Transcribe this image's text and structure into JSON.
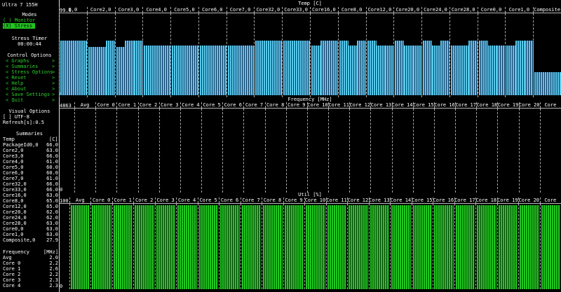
{
  "app": {
    "title": "Ultra 7 155H"
  },
  "sidebar": {
    "modes_title": "Modes",
    "mode_monitor": "( ) Monitor",
    "mode_stress": "(X) Stress",
    "stress_timer_title": "Stress Timer",
    "stress_timer_value": "00:00:44",
    "control_title": "Control Options",
    "controls": [
      {
        "label": "< Graphs",
        "arrow": ">"
      },
      {
        "label": "< Summaries",
        "arrow": ">"
      },
      {
        "label": "< Stress Options",
        "arrow": ">"
      },
      {
        "label": "< Reset",
        "arrow": ">"
      },
      {
        "label": "< Help",
        "arrow": ">"
      },
      {
        "label": "< About",
        "arrow": ">"
      },
      {
        "label": "< Save Settings",
        "arrow": ">"
      },
      {
        "label": "< Quit",
        "arrow": ">"
      }
    ],
    "visual_title": "Visual Options",
    "utf8": "[ ] UTF-8",
    "refresh": "Refresh[s]:0.5",
    "summaries_title": "Summaries",
    "temp_header": {
      "label": "Temp",
      "unit": "[C]"
    },
    "temp_rows": [
      {
        "label": "PackageId0,0",
        "value": "66.0"
      },
      {
        "label": "Core2,0",
        "value": "63.0"
      },
      {
        "label": "Core3,0",
        "value": "66.0"
      },
      {
        "label": "Core4,0",
        "value": "61.0"
      },
      {
        "label": "Core5,0",
        "value": "60.0"
      },
      {
        "label": "Core6,0",
        "value": "60.0"
      },
      {
        "label": "Core7,0",
        "value": "61.0"
      },
      {
        "label": "Core32,0",
        "value": "66.0"
      },
      {
        "label": "Core33,0",
        "value": "66.0"
      },
      {
        "label": "Core16,0",
        "value": "63.0"
      },
      {
        "label": "Core8,0",
        "value": "65.0"
      },
      {
        "label": "Core12,0",
        "value": "65.0"
      },
      {
        "label": "Core20,0",
        "value": "62.0"
      },
      {
        "label": "Core24,0",
        "value": "62.0"
      },
      {
        "label": "Core28,0",
        "value": "63.0"
      },
      {
        "label": "Core0,0",
        "value": "63.0"
      },
      {
        "label": "Core1,0",
        "value": "63.0"
      },
      {
        "label": "Composite,0",
        "value": "27.9"
      }
    ],
    "freq_header": {
      "label": "Frequency",
      "unit": "[MHz]"
    },
    "freq_rows": [
      {
        "label": "Avg",
        "value": "2.0"
      },
      {
        "label": "Core 0",
        "value": "2.2"
      },
      {
        "label": "Core 1",
        "value": "2.6"
      },
      {
        "label": "Core 2",
        "value": "2.2"
      },
      {
        "label": "Core 3",
        "value": "2.3"
      },
      {
        "label": "Core 4",
        "value": "2.3"
      }
    ]
  },
  "temp_graph": {
    "title": "Temp [C]",
    "scale_top": "99.0",
    "scale_bottom": "0.0",
    "columns": [
      {
        "label": "0,0",
        "levels": [
          0.67
        ]
      },
      {
        "label": "Core2,0",
        "levels": [
          0.59,
          0.59,
          0.67
        ]
      },
      {
        "label": "Core3,0",
        "levels": [
          0.59,
          0.67,
          0.67
        ]
      },
      {
        "label": "Core4,0",
        "levels": [
          0.61
        ]
      },
      {
        "label": "Core5,0",
        "levels": [
          0.61
        ]
      },
      {
        "label": "Core6,0",
        "levels": [
          0.61
        ]
      },
      {
        "label": "Core7,0",
        "levels": [
          0.61
        ]
      },
      {
        "label": "Core32,0",
        "levels": [
          0.67
        ]
      },
      {
        "label": "Core33,0",
        "levels": [
          0.67
        ]
      },
      {
        "label": "Core16,0",
        "levels": [
          0.61,
          0.67,
          0.67
        ]
      },
      {
        "label": "Core8,0",
        "levels": [
          0.67,
          0.61,
          0.67
        ]
      },
      {
        "label": "Core12,0",
        "levels": [
          0.67,
          0.61,
          0.61
        ]
      },
      {
        "label": "Core20,0",
        "levels": [
          0.67,
          0.61,
          0.61
        ]
      },
      {
        "label": "Core24,0",
        "levels": [
          0.67,
          0.61,
          0.67
        ]
      },
      {
        "label": "Core28,0",
        "levels": [
          0.61,
          0.61,
          0.67
        ]
      },
      {
        "label": "Core0,0",
        "levels": [
          0.67,
          0.61,
          0.61
        ]
      },
      {
        "label": "Core1,0",
        "levels": [
          0.61,
          0.67,
          0.67
        ]
      },
      {
        "label": "Composite",
        "levels": [
          0.28
        ]
      }
    ]
  },
  "freq_graph": {
    "title": "Frequency [MHz]",
    "scale_top": "4863",
    "columns": [
      "Avg",
      "Core 0",
      "Core 1",
      "Core 2",
      "Core 3",
      "Core 4",
      "Core 5",
      "Core 6",
      "Core 7",
      "Core 8",
      "Core 9",
      "Core 10",
      "Core 11",
      "Core 12",
      "Core 13",
      "Core 14",
      "Core 15",
      "Core 16",
      "Core 17",
      "Core 18",
      "Core 19",
      "Core 20",
      "Core"
    ]
  },
  "util_graph": {
    "title": "Util [%]",
    "scale_top": "100",
    "columns": [
      "Avg",
      "Core 0",
      "Core 1",
      "Core 2",
      "Core 3",
      "Core 4",
      "Core 5",
      "Core 6",
      "Core 7",
      "Core 8",
      "Core 9",
      "Core 10",
      "Core 11",
      "Core 12",
      "Core 13",
      "Core 14",
      "Core 15",
      "Core 16",
      "Core 17",
      "Core 18",
      "Core 19",
      "Core 20",
      "Core"
    ],
    "level": 1.0
  },
  "freq_cursor": "0",
  "util_cursor": "0",
  "colors": {
    "accent": "#21c421",
    "temp_bar": "#58c8ea",
    "util_bar": "#20c820"
  }
}
